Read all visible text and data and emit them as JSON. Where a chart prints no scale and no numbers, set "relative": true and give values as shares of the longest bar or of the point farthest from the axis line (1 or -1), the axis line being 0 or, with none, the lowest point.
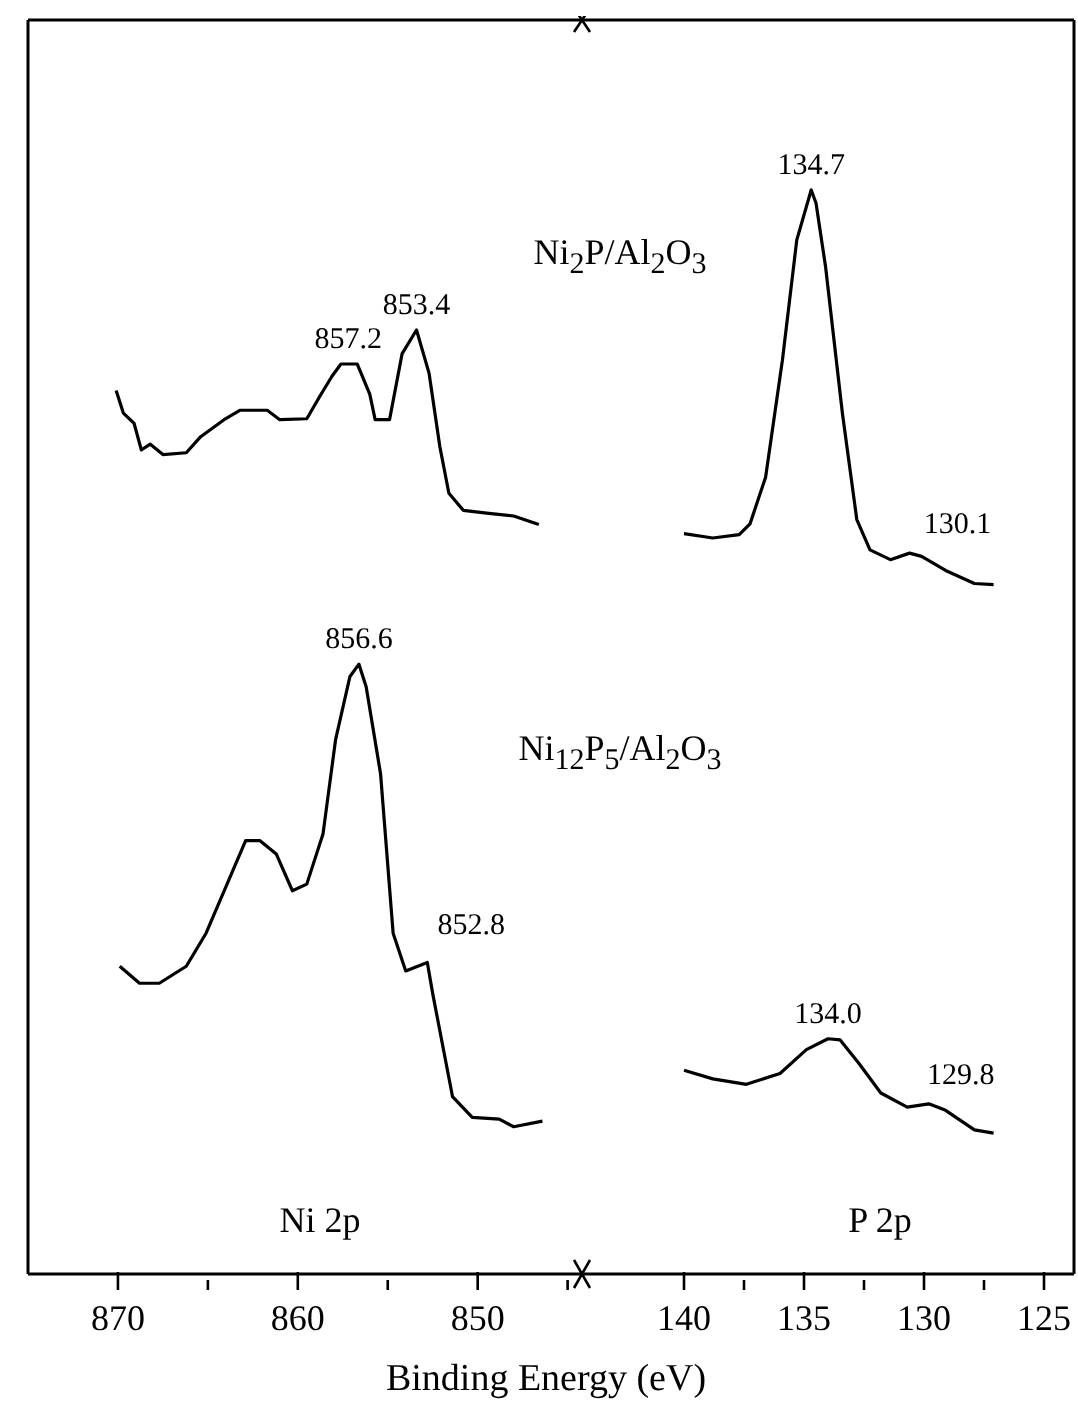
{
  "chart_data": [
    {
      "type": "line",
      "relative": true,
      "xlabel": "Binding Energy (eV)",
      "xlim": [
        875,
        844.2
      ],
      "xticks": [
        870,
        {
          "value": 865,
          "label": null
        },
        860,
        {
          "value": 855,
          "label": null
        },
        850,
        {
          "value": 845,
          "label": null
        }
      ],
      "tick_labels": "x",
      "series": [
        {
          "color": "#000000",
          "x": [
            870.1,
            869.7,
            869.1,
            868.7,
            868.2,
            867.5,
            866.2,
            865.4,
            864.1,
            863.2,
            861.7,
            861.0,
            859.5,
            858.8,
            858.1,
            857.6,
            856.7,
            856.0,
            855.7,
            854.9,
            854.2,
            853.4,
            852.7,
            852.1,
            851.6,
            850.8,
            849.5,
            848.0,
            846.6
          ],
          "values": [
            0.936,
            0.912,
            0.901,
            0.873,
            0.879,
            0.868,
            0.87,
            0.887,
            0.905,
            0.915,
            0.915,
            0.905,
            0.906,
            0.929,
            0.951,
            0.964,
            0.964,
            0.932,
            0.905,
            0.905,
            0.975,
            1.0,
            0.954,
            0.876,
            0.827,
            0.809,
            0.806,
            0.803,
            0.794
          ]
        },
        {
          "color": "#000000",
          "x": [
            869.9,
            868.8,
            867.7,
            866.2,
            865.1,
            864.0,
            862.9,
            862.1,
            861.2,
            860.3,
            859.5,
            858.6,
            857.9,
            857.1,
            856.6,
            856.2,
            855.4,
            854.7,
            854.0,
            852.8,
            852.5,
            851.4,
            850.3,
            848.8,
            848.0,
            846.4
          ],
          "values": [
            0.326,
            0.308,
            0.308,
            0.326,
            0.361,
            0.41,
            0.459,
            0.459,
            0.445,
            0.406,
            0.413,
            0.466,
            0.566,
            0.633,
            0.646,
            0.622,
            0.53,
            0.361,
            0.321,
            0.33,
            0.297,
            0.188,
            0.166,
            0.164,
            0.156,
            0.162
          ]
        }
      ],
      "annotations": [
        "Ni$_{2}$P/Al$_{2}$O$_{3}$",
        "Ni$_{12}$P$_{5}$/Al$_{2}$O$_{3}$",
        "Ni 2p",
        {
          "text": "857.2",
          "x": 857.2,
          "y": 0.964
        },
        {
          "text": "853.4",
          "x": 853.4,
          "y": 1.0
        },
        {
          "text": "856.6",
          "x": 856.6,
          "y": 0.646
        },
        {
          "text": "852.8",
          "x": 852.8,
          "y": 0.33
        }
      ]
    },
    {
      "type": "line",
      "relative": true,
      "xlim": [
        144.25,
        123.75
      ],
      "xticks": [
        140,
        {
          "value": 137.5,
          "label": null
        },
        135,
        {
          "value": 132.5,
          "label": null
        },
        130,
        {
          "value": 127.5,
          "label": null
        },
        125
      ],
      "tick_labels": "x",
      "series": [
        {
          "color": "#000000",
          "x": [
            140.0,
            138.8,
            137.7,
            137.25,
            136.6,
            135.9,
            135.3,
            134.7,
            134.5,
            134.1,
            133.4,
            132.8,
            132.25,
            131.4,
            130.6,
            130.1,
            129.1,
            127.9,
            127.1
          ],
          "values": [
            0.683,
            0.679,
            0.682,
            0.692,
            0.735,
            0.843,
            0.954,
            1.0,
            0.988,
            0.929,
            0.794,
            0.696,
            0.668,
            0.659,
            0.665,
            0.662,
            0.649,
            0.637,
            0.636
          ]
        },
        {
          "color": "#000000",
          "x": [
            140.0,
            138.8,
            137.4,
            136.0,
            134.9,
            134.0,
            133.5,
            132.7,
            131.8,
            130.7,
            129.8,
            129.1,
            127.9,
            127.1
          ],
          "values": [
            0.188,
            0.18,
            0.175,
            0.185,
            0.207,
            0.217,
            0.216,
            0.194,
            0.167,
            0.154,
            0.157,
            0.151,
            0.133,
            0.13
          ]
        }
      ],
      "annotations": [
        "P 2p",
        {
          "text": "134.7",
          "x": 134.7,
          "y": 1.0
        },
        {
          "text": "130.1",
          "x": 130.1,
          "y": 0.665
        },
        {
          "text": "134.0",
          "x": 134.0,
          "y": 0.217
        },
        {
          "text": "129.8",
          "x": 129.8,
          "y": 0.157
        }
      ]
    }
  ]
}
